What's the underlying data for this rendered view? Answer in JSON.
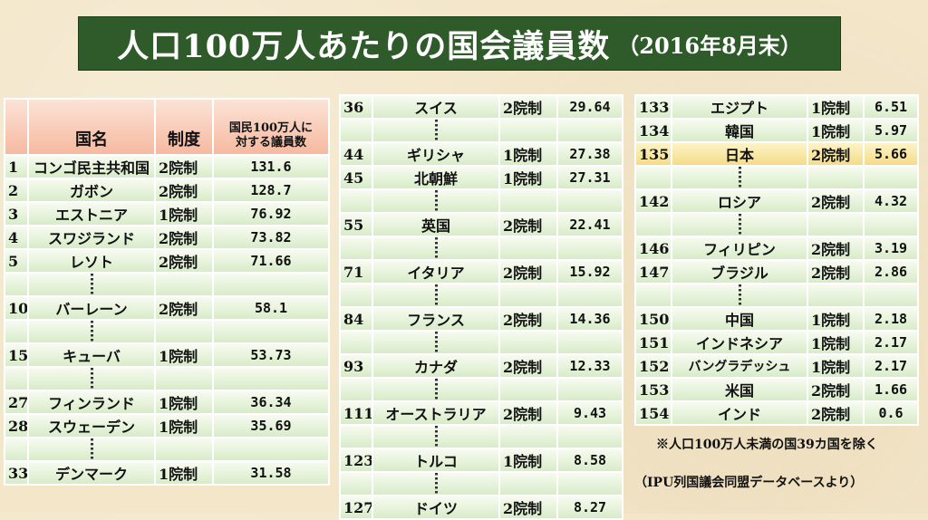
{
  "title": {
    "main": "人口100万人あたりの国会議員数",
    "date": "（2016年8月末）"
  },
  "headers": {
    "country": "国名",
    "system": "制度",
    "value_line1": "国民100万人に",
    "value_line2": "対する議員数"
  },
  "col1": [
    {
      "rank": "1",
      "name": "コンゴ民主共和国",
      "system": "2院制",
      "value": "131.6"
    },
    {
      "rank": "2",
      "name": "ガボン",
      "system": "2院制",
      "value": "128.7"
    },
    {
      "rank": "3",
      "name": "エストニア",
      "system": "1院制",
      "value": "76.92"
    },
    {
      "rank": "4",
      "name": "スワジランド",
      "system": "2院制",
      "value": "73.82"
    },
    {
      "rank": "5",
      "name": "レソト",
      "system": "2院制",
      "value": "71.66"
    },
    {
      "rank": "10",
      "name": "バーレーン",
      "system": "2院制",
      "value": "58.1"
    },
    {
      "rank": "15",
      "name": "キューバ",
      "system": "1院制",
      "value": "53.73"
    },
    {
      "rank": "27",
      "name": "フィンランド",
      "system": "1院制",
      "value": "36.34"
    },
    {
      "rank": "28",
      "name": "スウェーデン",
      "system": "1院制",
      "value": "35.69"
    },
    {
      "rank": "33",
      "name": "デンマーク",
      "system": "1院制",
      "value": "31.58"
    }
  ],
  "col2": [
    {
      "rank": "36",
      "name": "スイス",
      "system": "2院制",
      "value": "29.64"
    },
    {
      "rank": "44",
      "name": "ギリシャ",
      "system": "1院制",
      "value": "27.38"
    },
    {
      "rank": "45",
      "name": "北朝鮮",
      "system": "1院制",
      "value": "27.31"
    },
    {
      "rank": "55",
      "name": "英国",
      "system": "2院制",
      "value": "22.41"
    },
    {
      "rank": "71",
      "name": "イタリア",
      "system": "2院制",
      "value": "15.92"
    },
    {
      "rank": "84",
      "name": "フランス",
      "system": "2院制",
      "value": "14.36"
    },
    {
      "rank": "93",
      "name": "カナダ",
      "system": "2院制",
      "value": "12.33"
    },
    {
      "rank": "111",
      "name": "オーストラリア",
      "system": "2院制",
      "value": "9.43"
    },
    {
      "rank": "123",
      "name": "トルコ",
      "system": "1院制",
      "value": "8.58"
    },
    {
      "rank": "127",
      "name": "ドイツ",
      "system": "2院制",
      "value": "8.27"
    }
  ],
  "col3": [
    {
      "rank": "133",
      "name": "エジプト",
      "system": "1院制",
      "value": "6.51"
    },
    {
      "rank": "134",
      "name": "韓国",
      "system": "1院制",
      "value": "5.97"
    },
    {
      "rank": "135",
      "name": "日本",
      "system": "2院制",
      "value": "5.66"
    },
    {
      "rank": "142",
      "name": "ロシア",
      "system": "2院制",
      "value": "4.32"
    },
    {
      "rank": "146",
      "name": "フィリピン",
      "system": "2院制",
      "value": "3.19"
    },
    {
      "rank": "147",
      "name": "ブラジル",
      "system": "2院制",
      "value": "2.86"
    },
    {
      "rank": "150",
      "name": "中国",
      "system": "1院制",
      "value": "2.18"
    },
    {
      "rank": "151",
      "name": "インドネシア",
      "system": "1院制",
      "value": "2.17"
    },
    {
      "rank": "152",
      "name": "バングラデッシュ",
      "system": "1院制",
      "value": "2.17"
    },
    {
      "rank": "153",
      "name": "米国",
      "system": "2院制",
      "value": "1.66"
    },
    {
      "rank": "154",
      "name": "インド",
      "system": "2院制",
      "value": "0.6"
    }
  ],
  "notes": {
    "exclusion": "※人口100万人未満の国39カ国を除く",
    "source": "（IPU列国議会同盟データベースより）"
  },
  "colors": {
    "title_bg": "#2f5b2b",
    "cell_green": "#d8ecc8",
    "header_salmon": "#f6b9a0",
    "highlight_yellow": "#f5dc86"
  }
}
